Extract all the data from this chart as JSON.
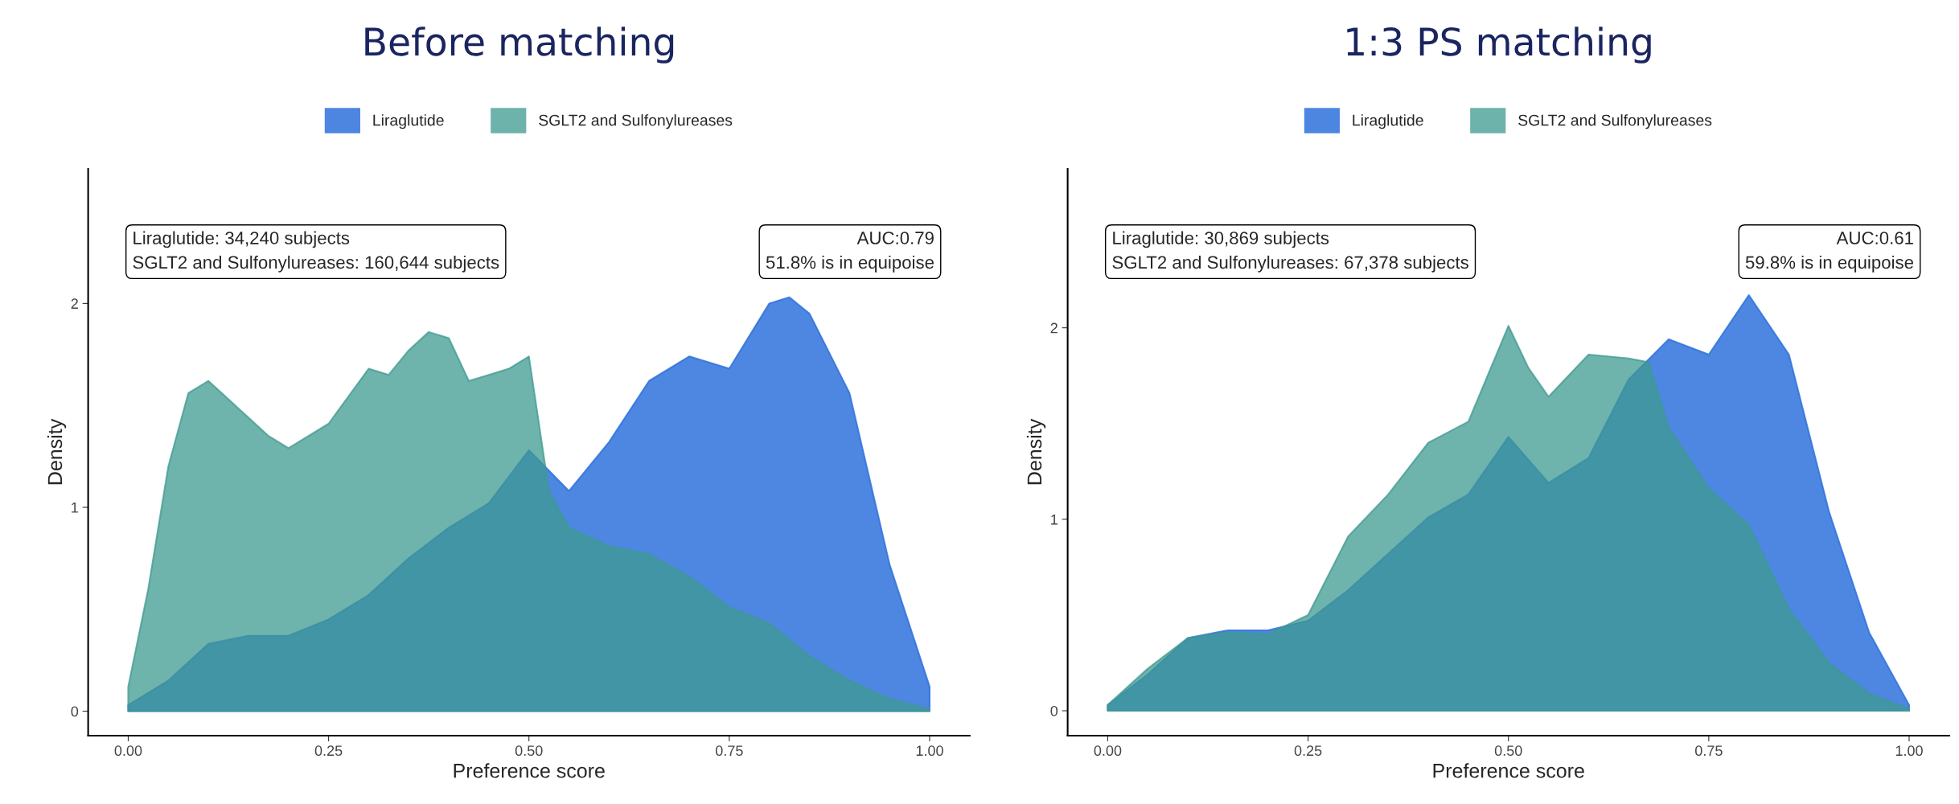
{
  "chart_data": [
    {
      "type": "area",
      "title": "Before matching",
      "xlabel": "Preference score",
      "ylabel": "Density",
      "legend": "top",
      "grid": false,
      "xlim": [
        -0.05,
        1.05
      ],
      "ylim": [
        -0.12,
        2.66
      ],
      "xticks": [
        {
          "value": 0,
          "label": "0.00"
        },
        {
          "value": 0.25,
          "label": "0.25"
        },
        {
          "value": 0.5,
          "label": "0.50"
        },
        {
          "value": 0.75,
          "label": "0.75"
        },
        {
          "value": 1,
          "label": "1.00"
        }
      ],
      "yticks": [
        0,
        1,
        2
      ],
      "annotations": [
        "Liraglutide: 34,240 subjects\nSGLT2 and Sulfonylureases: 160,644 subjects",
        "AUC:0.79\n51.8% is in equipoise"
      ],
      "series": [
        {
          "name": "Liraglutide",
          "color": "#2f72dc",
          "x": [
            0,
            0.05,
            0.1,
            0.15,
            0.2,
            0.25,
            0.3,
            0.35,
            0.4,
            0.45,
            0.5,
            0.55,
            0.6,
            0.65,
            0.7,
            0.75,
            0.8,
            0.825,
            0.85,
            0.9,
            0.95,
            1.0
          ],
          "values": [
            0.03,
            0.15,
            0.33,
            0.37,
            0.37,
            0.45,
            0.57,
            0.75,
            0.9,
            1.02,
            1.28,
            1.08,
            1.32,
            1.62,
            1.74,
            1.68,
            2.0,
            2.03,
            1.95,
            1.56,
            0.72,
            0.12
          ]
        },
        {
          "name": "SGLT2 and Sulfonylureases",
          "color": "#3e9a90",
          "x": [
            0,
            0.025,
            0.05,
            0.075,
            0.1,
            0.125,
            0.15,
            0.175,
            0.2,
            0.25,
            0.3,
            0.325,
            0.35,
            0.375,
            0.4,
            0.425,
            0.45,
            0.475,
            0.5,
            0.525,
            0.55,
            0.6,
            0.65,
            0.7,
            0.75,
            0.8,
            0.85,
            0.9,
            0.95,
            1.0
          ],
          "values": [
            0.12,
            0.6,
            1.2,
            1.56,
            1.62,
            1.53,
            1.44,
            1.35,
            1.29,
            1.41,
            1.68,
            1.65,
            1.77,
            1.86,
            1.83,
            1.62,
            1.65,
            1.68,
            1.74,
            1.08,
            0.9,
            0.81,
            0.77,
            0.66,
            0.51,
            0.43,
            0.27,
            0.15,
            0.06,
            0.01
          ]
        }
      ]
    },
    {
      "type": "area",
      "title": "1:3 PS matching",
      "xlabel": "Preference score",
      "ylabel": "Density",
      "legend": "top",
      "grid": false,
      "xlim": [
        -0.05,
        1.05
      ],
      "ylim": [
        -0.13,
        2.83
      ],
      "xticks": [
        {
          "value": 0,
          "label": "0.00"
        },
        {
          "value": 0.25,
          "label": "0.25"
        },
        {
          "value": 0.5,
          "label": "0.50"
        },
        {
          "value": 0.75,
          "label": "0.75"
        },
        {
          "value": 1,
          "label": "1.00"
        }
      ],
      "yticks": [
        0,
        1,
        2
      ],
      "annotations": [
        "Liraglutide: 30,869 subjects\nSGLT2 and Sulfonylureases: 67,378 subjects",
        "AUC:0.61\n59.8% is in equipoise"
      ],
      "series": [
        {
          "name": "Liraglutide",
          "color": "#2f72dc",
          "x": [
            0,
            0.05,
            0.1,
            0.15,
            0.2,
            0.25,
            0.3,
            0.35,
            0.4,
            0.45,
            0.5,
            0.55,
            0.6,
            0.65,
            0.7,
            0.75,
            0.8,
            0.85,
            0.9,
            0.95,
            1.0
          ],
          "values": [
            0.03,
            0.19,
            0.38,
            0.42,
            0.42,
            0.47,
            0.63,
            0.82,
            1.01,
            1.13,
            1.43,
            1.19,
            1.32,
            1.73,
            1.94,
            1.86,
            2.17,
            1.86,
            1.04,
            0.41,
            0.03
          ]
        },
        {
          "name": "SGLT2 and Sulfonylureases",
          "color": "#3e9a90",
          "x": [
            0,
            0.05,
            0.1,
            0.15,
            0.2,
            0.25,
            0.3,
            0.35,
            0.4,
            0.45,
            0.5,
            0.525,
            0.55,
            0.6,
            0.65,
            0.675,
            0.7,
            0.75,
            0.8,
            0.85,
            0.9,
            0.95,
            1.0
          ],
          "values": [
            0.03,
            0.22,
            0.38,
            0.41,
            0.4,
            0.5,
            0.91,
            1.13,
            1.4,
            1.51,
            2.01,
            1.79,
            1.64,
            1.86,
            1.84,
            1.82,
            1.48,
            1.16,
            0.97,
            0.53,
            0.25,
            0.09,
            0.01
          ]
        }
      ]
    }
  ]
}
